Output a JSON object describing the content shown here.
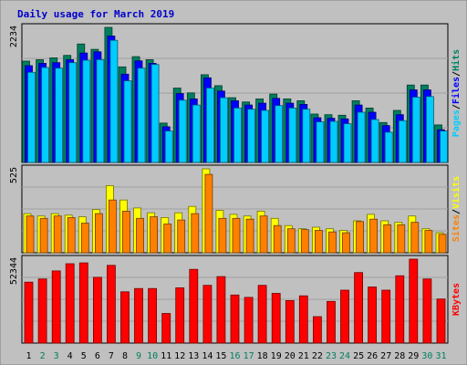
{
  "title": "Daily usage for March 2019",
  "colors": {
    "bg": "#c0c0c0",
    "panel": "#c0c0c0",
    "title_text": "#0000cc",
    "hits": "#007f5f",
    "files": "#0000ff",
    "pages": "#00ccff",
    "visits": "#ffff00",
    "sites": "#ff8000",
    "kbytes": "#ff0000",
    "day_weekday": "#000000",
    "day_weekend": "#007f5f"
  },
  "chart_data": [
    {
      "type": "bar",
      "panel": "hits",
      "max_label": "2234",
      "ylim": [
        0,
        2234
      ],
      "legend": {
        "hits": "Hits",
        "files": "Files",
        "pages": "Pages",
        "sep": "/"
      },
      "series": [
        {
          "name": "Hits",
          "values": [
            1675,
            1700,
            1730,
            1770,
            1960,
            1870,
            2234,
            1580,
            1750,
            1700,
            650,
            1230,
            1150,
            1450,
            1270,
            1070,
            1000,
            1050,
            1130,
            1050,
            1020,
            800,
            790,
            780,
            1020,
            900,
            660,
            860,
            1280,
            1280,
            620
          ]
        },
        {
          "name": "Files",
          "values": [
            1600,
            1640,
            1650,
            1700,
            1810,
            1830,
            2090,
            1460,
            1680,
            1640,
            590,
            1140,
            1050,
            1400,
            1180,
            1020,
            950,
            980,
            1060,
            980,
            960,
            740,
            730,
            720,
            950,
            830,
            610,
            790,
            1200,
            1200,
            540
          ]
        },
        {
          "name": "Pages",
          "values": [
            1490,
            1570,
            1560,
            1650,
            1690,
            1700,
            2020,
            1350,
            1560,
            1620,
            520,
            1030,
            950,
            1230,
            1070,
            900,
            880,
            860,
            940,
            900,
            880,
            670,
            680,
            640,
            830,
            710,
            500,
            690,
            1080,
            1090,
            520
          ]
        }
      ]
    },
    {
      "type": "bar",
      "panel": "visits",
      "max_label": "525",
      "ylim": [
        0,
        525
      ],
      "legend": {
        "visits": "Visits",
        "sites": "Sites",
        "sep": "/"
      },
      "series": [
        {
          "name": "Visits",
          "values": [
            245,
            230,
            245,
            235,
            225,
            270,
            420,
            330,
            280,
            250,
            220,
            250,
            290,
            525,
            265,
            240,
            230,
            260,
            215,
            170,
            150,
            160,
            150,
            140,
            200,
            240,
            200,
            190,
            230,
            150,
            125
          ]
        },
        {
          "name": "Sites",
          "values": [
            230,
            215,
            230,
            220,
            185,
            245,
            330,
            260,
            215,
            225,
            180,
            205,
            245,
            490,
            215,
            215,
            210,
            230,
            170,
            150,
            145,
            140,
            130,
            125,
            195,
            210,
            175,
            175,
            190,
            140,
            115
          ]
        }
      ]
    },
    {
      "type": "bar",
      "panel": "kbytes",
      "max_label": "52344",
      "ylim": [
        0,
        52344
      ],
      "legend": {
        "kbytes": "KBytes"
      },
      "series": [
        {
          "name": "KBytes",
          "values": [
            38000,
            40000,
            45000,
            49500,
            50000,
            41000,
            48500,
            32000,
            34000,
            34000,
            18500,
            34500,
            46000,
            36000,
            41500,
            30000,
            28500,
            36000,
            31000,
            26500,
            29500,
            16500,
            26000,
            33000,
            44000,
            35000,
            33000,
            42000,
            52344,
            40000,
            27500
          ]
        }
      ]
    }
  ],
  "days": [
    "1",
    "2",
    "3",
    "4",
    "5",
    "6",
    "7",
    "8",
    "9",
    "10",
    "11",
    "12",
    "13",
    "14",
    "15",
    "16",
    "17",
    "18",
    "19",
    "20",
    "21",
    "22",
    "23",
    "24",
    "25",
    "26",
    "27",
    "28",
    "29",
    "30",
    "31"
  ],
  "weekend_days": [
    2,
    3,
    9,
    10,
    16,
    17,
    23,
    24,
    30,
    31
  ]
}
